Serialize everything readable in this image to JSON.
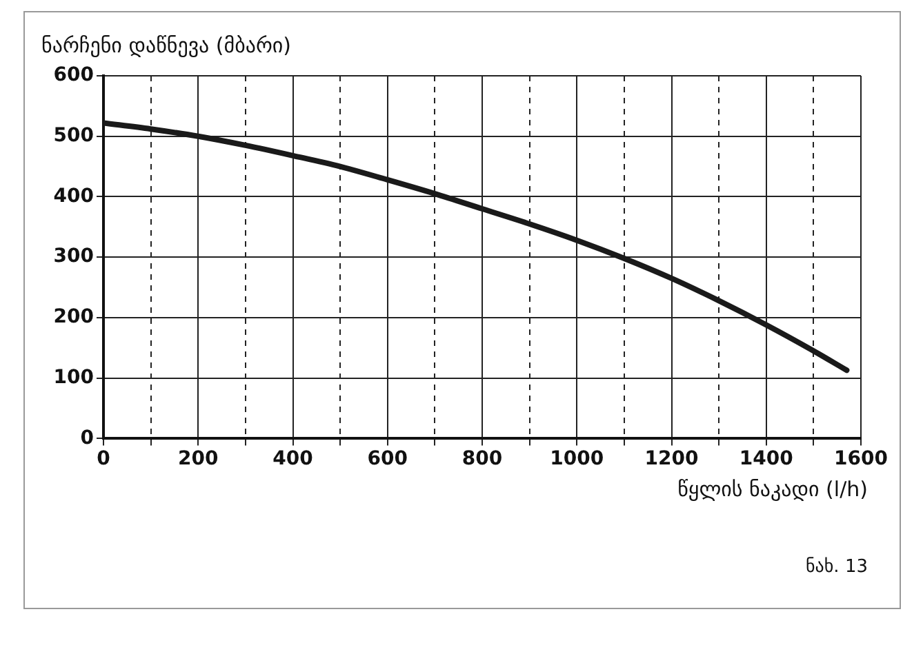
{
  "chart_data": {
    "type": "line",
    "ylabel": "ნარჩენი დაწნევა (მბარი)",
    "xlabel": "წყლის ნაკადი (l/h)",
    "annotations": [
      "ნახ. 13"
    ],
    "x": [
      0,
      100,
      200,
      300,
      400,
      500,
      600,
      700,
      800,
      900,
      1000,
      1100,
      1200,
      1300,
      1400,
      1500,
      1570
    ],
    "series": [
      {
        "color": "#1a1a1a",
        "values": [
          522,
          512,
          500,
          485,
          468,
          450,
          428,
          405,
          380,
          355,
          328,
          298,
          265,
          228,
          188,
          145,
          113
        ]
      }
    ],
    "xlim": [
      0,
      1600
    ],
    "ylim": [
      0,
      600
    ],
    "xticks": [
      0,
      {
        "value": 100,
        "label": null
      },
      200,
      {
        "value": 300,
        "label": null
      },
      400,
      {
        "value": 500,
        "label": null
      },
      600,
      {
        "value": 700,
        "label": null
      },
      800,
      {
        "value": 900,
        "label": null
      },
      1000,
      {
        "value": 1100,
        "label": null
      },
      1200,
      {
        "value": 1300,
        "label": null
      },
      1400,
      {
        "value": 1500,
        "label": null
      },
      1600
    ],
    "yticks": [
      0,
      100,
      200,
      300,
      400,
      500,
      600
    ],
    "grid": true,
    "legend": false,
    "marker": "none",
    "line_style": "solid"
  }
}
